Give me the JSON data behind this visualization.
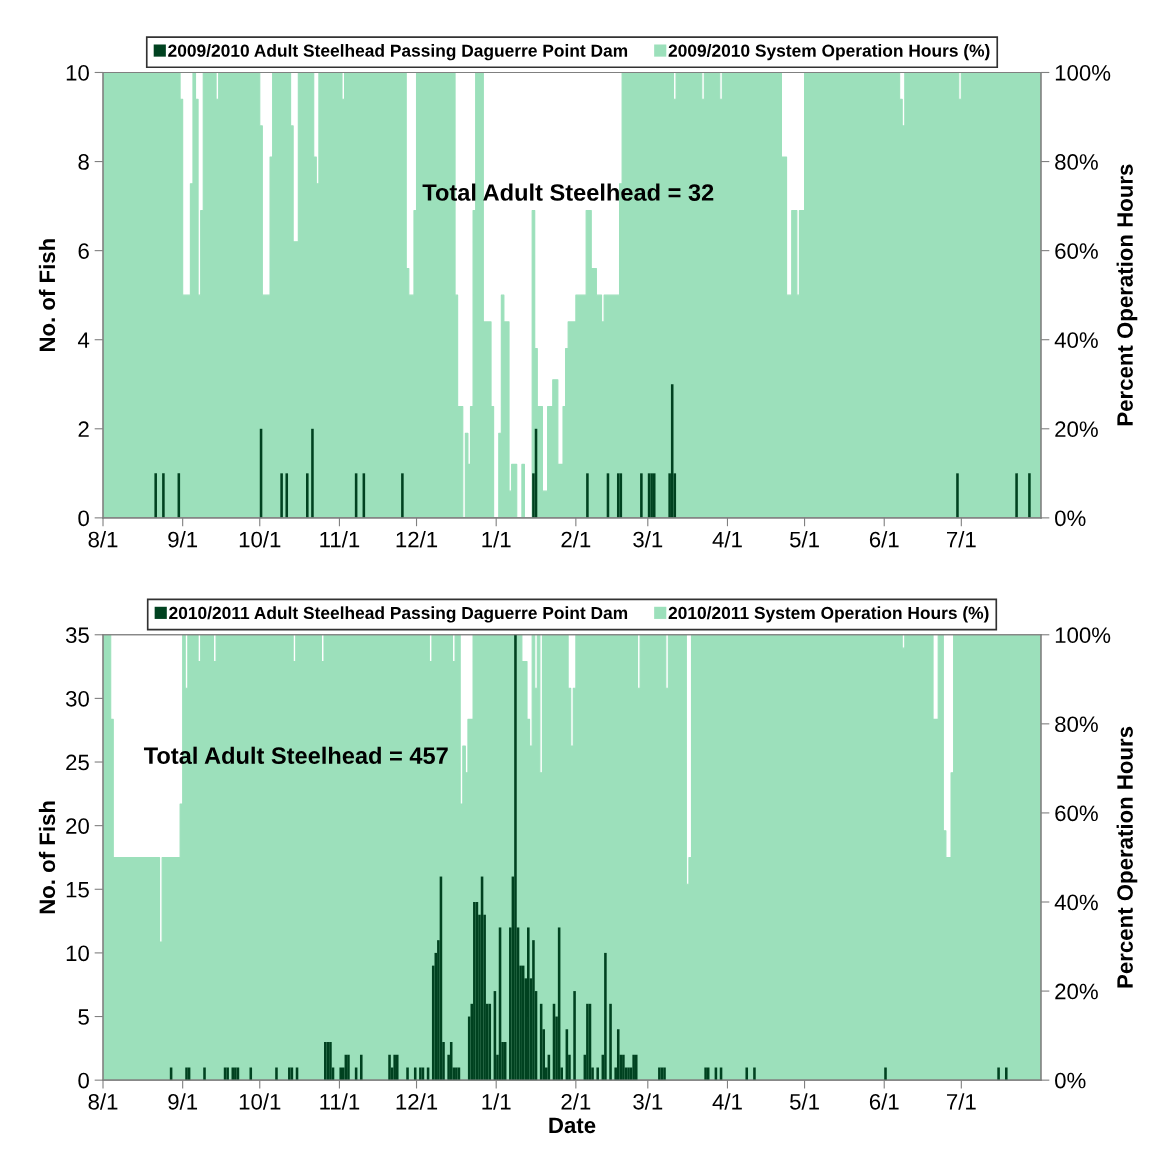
{
  "chart_data": [
    {
      "type": "bar",
      "ylabel": "No. of Fish",
      "y2label": "Percent Operation Hours",
      "legend": "top",
      "grid": false,
      "annotations": [
        "Total Adult Steelhead = 32"
      ],
      "xlim": [
        "2009-08-01",
        "2010-08-01"
      ],
      "xticks": [
        {
          "value": "2009-08-01",
          "label": "8/1"
        },
        {
          "value": "2009-09-01",
          "label": "9/1"
        },
        {
          "value": "2009-10-01",
          "label": "10/1"
        },
        {
          "value": "2009-11-01",
          "label": "11/1"
        },
        {
          "value": "2009-12-01",
          "label": "12/1"
        },
        {
          "value": "2010-01-01",
          "label": "1/1"
        },
        {
          "value": "2010-02-01",
          "label": "2/1"
        },
        {
          "value": "2010-03-01",
          "label": "3/1"
        },
        {
          "value": "2010-04-01",
          "label": "4/1"
        },
        {
          "value": "2010-05-01",
          "label": "5/1"
        },
        {
          "value": "2010-06-01",
          "label": "6/1"
        },
        {
          "value": "2010-07-01",
          "label": "7/1"
        }
      ],
      "ylim": [
        0,
        10
      ],
      "yticks": [
        0,
        2,
        4,
        6,
        8,
        10
      ],
      "y2lim": [
        0,
        100
      ],
      "y2ticks": [
        {
          "value": 0,
          "label": "0%"
        },
        {
          "value": 20,
          "label": "20%"
        },
        {
          "value": 40,
          "label": "40%"
        },
        {
          "value": 60,
          "label": "60%"
        },
        {
          "value": 80,
          "label": "80%"
        },
        {
          "value": 100,
          "label": "100%"
        }
      ],
      "series": [
        {
          "name": "2009/2010 Adult Steelhead Passing Daguerre Point Dam",
          "color": "#004220",
          "x": [
            "2009-08-21",
            "2009-08-24",
            "2009-08-30",
            "2009-10-01",
            "2009-10-09",
            "2009-10-11",
            "2009-10-19",
            "2009-10-21",
            "2009-11-07",
            "2009-11-10",
            "2009-11-25",
            "2010-01-15",
            "2010-01-16",
            "2010-02-05",
            "2010-02-13",
            "2010-02-17",
            "2010-02-18",
            "2010-02-26",
            "2010-03-01",
            "2010-03-02",
            "2010-03-03",
            "2010-03-09",
            "2010-03-10",
            "2010-03-11",
            "2010-06-29",
            "2010-07-22",
            "2010-07-27"
          ],
          "values": [
            1,
            1,
            1,
            2,
            1,
            1,
            1,
            2,
            1,
            1,
            1,
            1,
            2,
            1,
            1,
            1,
            1,
            1,
            1,
            1,
            1,
            1,
            3,
            1,
            1,
            1,
            1
          ]
        },
        {
          "name": "2009/2010 System Operation Hours (%)",
          "type": "step",
          "axis": "y2",
          "color": "#9ce0bb",
          "x": [
            "2009-08-01",
            "2009-08-31",
            "2009-09-01",
            "2009-09-04",
            "2009-09-05",
            "2009-09-06",
            "2009-09-07",
            "2009-09-08",
            "2009-09-09",
            "2009-09-14",
            "2009-09-15",
            "2009-10-01",
            "2009-10-02",
            "2009-10-05",
            "2009-10-06",
            "2009-10-13",
            "2009-10-14",
            "2009-10-16",
            "2009-10-22",
            "2009-10-23",
            "2009-10-24",
            "2009-11-02",
            "2009-11-03",
            "2009-11-27",
            "2009-11-28",
            "2009-11-30",
            "2009-12-01",
            "2009-12-16",
            "2009-12-17",
            "2009-12-19",
            "2009-12-20",
            "2009-12-21",
            "2009-12-22",
            "2009-12-23",
            "2009-12-24",
            "2009-12-27",
            "2009-12-30",
            "2009-12-31",
            "2010-01-02",
            "2010-01-03",
            "2010-01-04",
            "2010-01-06",
            "2010-01-07",
            "2010-01-09",
            "2010-01-11",
            "2010-01-12",
            "2010-01-15",
            "2010-01-16",
            "2010-01-17",
            "2010-01-19",
            "2010-01-21",
            "2010-01-23",
            "2010-01-25",
            "2010-01-27",
            "2010-01-28",
            "2010-01-29",
            "2010-02-01",
            "2010-02-05",
            "2010-02-07",
            "2010-02-09",
            "2010-02-11",
            "2010-02-12",
            "2010-02-18",
            "2010-02-19",
            "2010-03-11",
            "2010-03-12",
            "2010-03-22",
            "2010-03-23",
            "2010-03-29",
            "2010-03-30",
            "2010-04-22",
            "2010-04-24",
            "2010-04-26",
            "2010-04-28",
            "2010-04-29",
            "2010-05-01",
            "2010-06-07",
            "2010-06-08",
            "2010-06-09",
            "2010-06-30",
            "2010-07-01",
            "2010-08-01"
          ],
          "values": [
            100,
            94,
            50,
            75,
            100,
            94,
            50,
            69,
            100,
            94,
            100,
            88,
            50,
            81,
            100,
            88,
            62,
            100,
            81,
            75,
            100,
            94,
            100,
            56,
            50,
            69,
            100,
            50,
            25,
            0,
            19,
            12,
            25,
            69,
            100,
            44,
            25,
            0,
            19,
            50,
            44,
            6,
            12,
            0,
            12,
            0,
            69,
            38,
            25,
            6,
            25,
            31,
            12,
            25,
            38,
            44,
            50,
            69,
            56,
            50,
            44,
            50,
            75,
            100,
            94,
            100,
            94,
            100,
            94,
            100,
            81,
            50,
            69,
            50,
            69,
            100,
            94,
            88,
            100,
            94,
            100,
            100
          ]
        }
      ]
    },
    {
      "type": "bar",
      "xlabel": "Date",
      "ylabel": "No. of Fish",
      "y2label": "Percent Operation Hours",
      "legend": "top",
      "grid": false,
      "annotations": [
        "Total Adult Steelhead = 457"
      ],
      "xlim": [
        "2010-08-01",
        "2011-08-01"
      ],
      "xticks": [
        {
          "value": "2010-08-01",
          "label": "8/1"
        },
        {
          "value": "2010-09-01",
          "label": "9/1"
        },
        {
          "value": "2010-10-01",
          "label": "10/1"
        },
        {
          "value": "2010-11-01",
          "label": "11/1"
        },
        {
          "value": "2010-12-01",
          "label": "12/1"
        },
        {
          "value": "2011-01-01",
          "label": "1/1"
        },
        {
          "value": "2011-02-01",
          "label": "2/1"
        },
        {
          "value": "2011-03-01",
          "label": "3/1"
        },
        {
          "value": "2011-04-01",
          "label": "4/1"
        },
        {
          "value": "2011-05-01",
          "label": "5/1"
        },
        {
          "value": "2011-06-01",
          "label": "6/1"
        },
        {
          "value": "2011-07-01",
          "label": "7/1"
        }
      ],
      "ylim": [
        0,
        35
      ],
      "yticks": [
        0,
        5,
        10,
        15,
        20,
        25,
        30,
        35
      ],
      "y2lim": [
        0,
        100
      ],
      "y2ticks": [
        {
          "value": 0,
          "label": "0%"
        },
        {
          "value": 20,
          "label": "20%"
        },
        {
          "value": 40,
          "label": "40%"
        },
        {
          "value": 60,
          "label": "60%"
        },
        {
          "value": 80,
          "label": "80%"
        },
        {
          "value": 100,
          "label": "100%"
        }
      ],
      "series": [
        {
          "name": "2010/2011 Adult Steelhead Passing Daguerre Point Dam",
          "color": "#004220",
          "x": [
            "2010-08-27",
            "2010-09-02",
            "2010-09-03",
            "2010-09-09",
            "2010-09-17",
            "2010-09-18",
            "2010-09-20",
            "2010-09-21",
            "2010-09-22",
            "2010-09-27",
            "2010-10-07",
            "2010-10-12",
            "2010-10-13",
            "2010-10-15",
            "2010-10-26",
            "2010-10-27",
            "2010-10-28",
            "2010-10-29",
            "2010-11-01",
            "2010-11-02",
            "2010-11-03",
            "2010-11-04",
            "2010-11-07",
            "2010-11-09",
            "2010-11-20",
            "2010-11-21",
            "2010-11-22",
            "2010-11-23",
            "2010-11-27",
            "2010-11-30",
            "2010-12-02",
            "2010-12-03",
            "2010-12-05",
            "2010-12-07",
            "2010-12-08",
            "2010-12-09",
            "2010-12-10",
            "2010-12-11",
            "2010-12-13",
            "2010-12-14",
            "2010-12-15",
            "2010-12-16",
            "2010-12-17",
            "2010-12-21",
            "2010-12-22",
            "2010-12-23",
            "2010-12-24",
            "2010-12-25",
            "2010-12-26",
            "2010-12-27",
            "2010-12-28",
            "2010-12-29",
            "2010-12-31",
            "2011-01-01",
            "2011-01-02",
            "2011-01-03",
            "2011-01-04",
            "2011-01-06",
            "2011-01-07",
            "2011-01-08",
            "2011-01-09",
            "2011-01-10",
            "2011-01-11",
            "2011-01-12",
            "2011-01-13",
            "2011-01-14",
            "2011-01-15",
            "2011-01-16",
            "2011-01-18",
            "2011-01-19",
            "2011-01-20",
            "2011-01-21",
            "2011-01-23",
            "2011-01-24",
            "2011-01-25",
            "2011-01-26",
            "2011-01-28",
            "2011-01-29",
            "2011-01-31",
            "2011-02-04",
            "2011-02-05",
            "2011-02-06",
            "2011-02-07",
            "2011-02-09",
            "2011-02-11",
            "2011-02-12",
            "2011-02-14",
            "2011-02-16",
            "2011-02-17",
            "2011-02-18",
            "2011-02-19",
            "2011-02-20",
            "2011-02-21",
            "2011-02-22",
            "2011-02-23",
            "2011-02-24",
            "2011-03-05",
            "2011-03-06",
            "2011-03-07",
            "2011-03-23",
            "2011-03-24",
            "2011-03-27",
            "2011-03-29",
            "2011-04-08",
            "2011-04-11",
            "2011-06-01",
            "2011-07-15",
            "2011-07-18"
          ],
          "values": [
            1,
            1,
            1,
            1,
            1,
            1,
            1,
            1,
            1,
            1,
            1,
            1,
            1,
            1,
            3,
            3,
            3,
            1,
            1,
            1,
            2,
            2,
            1,
            2,
            2,
            1,
            2,
            2,
            1,
            1,
            1,
            1,
            1,
            9,
            10,
            11,
            16,
            3,
            2,
            3,
            1,
            1,
            1,
            5,
            6,
            14,
            14,
            13,
            16,
            13,
            6,
            6,
            7,
            2,
            12,
            3,
            3,
            12,
            16,
            35,
            12,
            9,
            9,
            8,
            12,
            8,
            11,
            7,
            6,
            4,
            1,
            2,
            6,
            5,
            12,
            1,
            4,
            2,
            7,
            2,
            6,
            6,
            1,
            1,
            2,
            10,
            6,
            1,
            4,
            2,
            2,
            1,
            1,
            1,
            2,
            2,
            1,
            1,
            1,
            1,
            1,
            1,
            1,
            1,
            1,
            1,
            1,
            1
          ]
        },
        {
          "name": "2010/2011 System Operation Hours (%)",
          "type": "step",
          "axis": "y2",
          "color": "#9ce0bb",
          "x": [
            "2010-08-01",
            "2010-08-04",
            "2010-08-05",
            "2010-08-23",
            "2010-08-24",
            "2010-08-31",
            "2010-09-01",
            "2010-09-02",
            "2010-09-03",
            "2010-09-07",
            "2010-09-08",
            "2010-09-13",
            "2010-09-14",
            "2010-10-14",
            "2010-10-15",
            "2010-10-25",
            "2010-10-26",
            "2010-12-06",
            "2010-12-07",
            "2010-12-15",
            "2010-12-16",
            "2010-12-18",
            "2010-12-19",
            "2010-12-20",
            "2010-12-21",
            "2010-12-23",
            "2011-01-11",
            "2011-01-13",
            "2011-01-14",
            "2011-01-15",
            "2011-01-16",
            "2011-01-17",
            "2011-01-18",
            "2011-01-19",
            "2011-01-29",
            "2011-01-30",
            "2011-01-31",
            "2011-02-01",
            "2011-02-25",
            "2011-02-26",
            "2011-03-08",
            "2011-03-09",
            "2011-03-16",
            "2011-03-17",
            "2011-03-18",
            "2011-06-08",
            "2011-06-09",
            "2011-06-20",
            "2011-06-22",
            "2011-06-24",
            "2011-06-25",
            "2011-06-27",
            "2011-06-28",
            "2011-08-01"
          ],
          "values": [
            100,
            81,
            50,
            31,
            50,
            62,
            100,
            88,
            100,
            94,
            100,
            94,
            100,
            94,
            100,
            94,
            100,
            94,
            100,
            94,
            100,
            62,
            75,
            69,
            81,
            100,
            94,
            81,
            75,
            100,
            88,
            100,
            69,
            100,
            88,
            75,
            88,
            100,
            88,
            100,
            88,
            100,
            44,
            50,
            100,
            97,
            100,
            81,
            100,
            56,
            50,
            69,
            100,
            100
          ]
        }
      ]
    }
  ]
}
